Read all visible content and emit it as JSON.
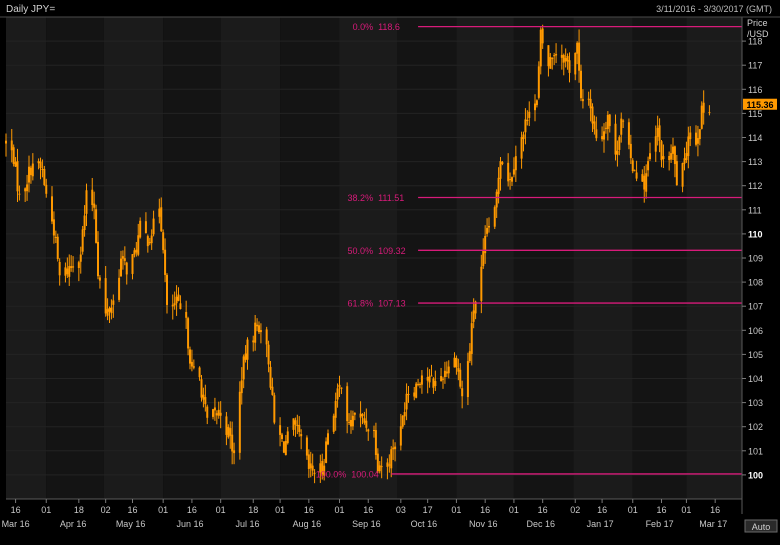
{
  "header": {
    "title": "Daily JPY=",
    "date_range": "3/11/2016 - 3/30/2017 (GMT)"
  },
  "axis_title": [
    "Price",
    "/USD"
  ],
  "auto_label": "Auto",
  "colors": {
    "background": "#000000",
    "plot_band_a": "#1b1b1b",
    "plot_band_b": "#141414",
    "candles": "#ff9900",
    "fib": "#d81b7a",
    "text": "#c8c8c8",
    "last_price_bg": "#ff9900"
  },
  "chart_data": {
    "type": "candlestick",
    "x_range": [
      "2016-03-11",
      "2017-03-30"
    ],
    "ylim": [
      99,
      119
    ],
    "y_ticks": [
      100,
      101,
      102,
      103,
      104,
      105,
      106,
      107,
      108,
      109,
      110,
      111,
      112,
      113,
      114,
      115,
      116,
      117,
      118
    ],
    "y_ticks_bold": [
      100,
      110
    ],
    "last_price": "115.36",
    "x_day_ticks": [
      {
        "date": "2016-03-16",
        "label": "16"
      },
      {
        "date": "2016-04-01",
        "label": "01"
      },
      {
        "date": "2016-04-18",
        "label": "18"
      },
      {
        "date": "2016-05-02",
        "label": "02"
      },
      {
        "date": "2016-05-16",
        "label": "16"
      },
      {
        "date": "2016-06-01",
        "label": "01"
      },
      {
        "date": "2016-06-16",
        "label": "16"
      },
      {
        "date": "2016-07-01",
        "label": "01"
      },
      {
        "date": "2016-07-18",
        "label": "18"
      },
      {
        "date": "2016-08-01",
        "label": "01"
      },
      {
        "date": "2016-08-16",
        "label": "16"
      },
      {
        "date": "2016-09-01",
        "label": "01"
      },
      {
        "date": "2016-09-16",
        "label": "16"
      },
      {
        "date": "2016-10-03",
        "label": "03"
      },
      {
        "date": "2016-10-17",
        "label": "17"
      },
      {
        "date": "2016-11-01",
        "label": "01"
      },
      {
        "date": "2016-11-16",
        "label": "16"
      },
      {
        "date": "2016-12-01",
        "label": "01"
      },
      {
        "date": "2016-12-16",
        "label": "16"
      },
      {
        "date": "2017-01-02",
        "label": "02"
      },
      {
        "date": "2017-01-16",
        "label": "16"
      },
      {
        "date": "2017-02-01",
        "label": "01"
      },
      {
        "date": "2017-02-16",
        "label": "16"
      },
      {
        "date": "2017-03-01",
        "label": "01"
      },
      {
        "date": "2017-03-16",
        "label": "16"
      }
    ],
    "x_month_labels": [
      {
        "date": "2016-03-16",
        "label": "Mar 16"
      },
      {
        "date": "2016-04-15",
        "label": "Apr 16"
      },
      {
        "date": "2016-05-15",
        "label": "May 16"
      },
      {
        "date": "2016-06-15",
        "label": "Jun 16"
      },
      {
        "date": "2016-07-15",
        "label": "Jul 16"
      },
      {
        "date": "2016-08-15",
        "label": "Aug 16"
      },
      {
        "date": "2016-09-15",
        "label": "Sep 16"
      },
      {
        "date": "2016-10-15",
        "label": "Oct 16"
      },
      {
        "date": "2016-11-15",
        "label": "Nov 16"
      },
      {
        "date": "2016-12-15",
        "label": "Dec 16"
      },
      {
        "date": "2017-01-15",
        "label": "Jan 17"
      },
      {
        "date": "2017-02-15",
        "label": "Feb 17"
      },
      {
        "date": "2017-03-15",
        "label": "Mar 17"
      }
    ],
    "fib_levels": [
      {
        "pct": "0.0%",
        "value": 118.6,
        "label": "118.6",
        "start_date": "2016-10-12"
      },
      {
        "pct": "38.2%",
        "value": 111.51,
        "label": "111.51",
        "start_date": "2016-10-12"
      },
      {
        "pct": "50.0%",
        "value": 109.32,
        "label": "109.32",
        "start_date": "2016-10-12"
      },
      {
        "pct": "61.8%",
        "value": 107.13,
        "label": "107.13",
        "start_date": "2016-10-12"
      },
      {
        "pct": "100.0%",
        "value": 100.04,
        "label": "100.04",
        "start_date": "2016-09-28"
      }
    ],
    "series_close": [
      [
        "2016-03-11",
        113.8
      ],
      [
        "2016-03-15",
        113.2
      ],
      [
        "2016-03-18",
        111.5
      ],
      [
        "2016-03-22",
        112.3
      ],
      [
        "2016-03-25",
        113.0
      ],
      [
        "2016-03-30",
        112.6
      ],
      [
        "2016-04-01",
        111.6
      ],
      [
        "2016-04-05",
        110.2
      ],
      [
        "2016-04-08",
        108.2
      ],
      [
        "2016-04-12",
        108.5
      ],
      [
        "2016-04-15",
        108.8
      ],
      [
        "2016-04-19",
        109.3
      ],
      [
        "2016-04-22",
        111.5
      ],
      [
        "2016-04-26",
        111.2
      ],
      [
        "2016-04-28",
        108.5
      ],
      [
        "2016-05-02",
        106.6
      ],
      [
        "2016-05-06",
        107.2
      ],
      [
        "2016-05-10",
        108.9
      ],
      [
        "2016-05-13",
        108.6
      ],
      [
        "2016-05-17",
        109.1
      ],
      [
        "2016-05-20",
        110.2
      ],
      [
        "2016-05-24",
        109.8
      ],
      [
        "2016-05-27",
        110.3
      ],
      [
        "2016-05-30",
        111.2
      ],
      [
        "2016-06-01",
        109.6
      ],
      [
        "2016-06-03",
        106.8
      ],
      [
        "2016-06-08",
        107.1
      ],
      [
        "2016-06-13",
        106.2
      ],
      [
        "2016-06-16",
        104.3
      ],
      [
        "2016-06-20",
        104.0
      ],
      [
        "2016-06-24",
        102.2
      ],
      [
        "2016-06-28",
        102.5
      ],
      [
        "2016-07-01",
        102.6
      ],
      [
        "2016-07-06",
        101.5
      ],
      [
        "2016-07-08",
        100.8
      ],
      [
        "2016-07-12",
        104.2
      ],
      [
        "2016-07-15",
        105.3
      ],
      [
        "2016-07-19",
        106.1
      ],
      [
        "2016-07-22",
        106.2
      ],
      [
        "2016-07-26",
        104.8
      ],
      [
        "2016-07-29",
        102.1
      ],
      [
        "2016-08-03",
        101.2
      ],
      [
        "2016-08-08",
        102.0
      ],
      [
        "2016-08-12",
        101.4
      ],
      [
        "2016-08-16",
        100.2
      ],
      [
        "2016-08-19",
        100.2
      ],
      [
        "2016-08-23",
        100.2
      ],
      [
        "2016-08-26",
        101.8
      ],
      [
        "2016-08-31",
        103.3
      ],
      [
        "2016-09-02",
        103.9
      ],
      [
        "2016-09-06",
        101.9
      ],
      [
        "2016-09-09",
        102.6
      ],
      [
        "2016-09-14",
        102.2
      ],
      [
        "2016-09-19",
        101.8
      ],
      [
        "2016-09-21",
        100.5
      ],
      [
        "2016-09-26",
        100.4
      ],
      [
        "2016-09-29",
        101.2
      ],
      [
        "2016-10-03",
        101.8
      ],
      [
        "2016-10-06",
        103.5
      ],
      [
        "2016-10-10",
        103.6
      ],
      [
        "2016-10-14",
        104.2
      ],
      [
        "2016-10-18",
        103.9
      ],
      [
        "2016-10-21",
        103.8
      ],
      [
        "2016-10-25",
        104.2
      ],
      [
        "2016-10-28",
        104.6
      ],
      [
        "2016-11-01",
        104.8
      ],
      [
        "2016-11-04",
        103.2
      ],
      [
        "2016-11-08",
        105.2
      ],
      [
        "2016-11-10",
        106.9
      ],
      [
        "2016-11-14",
        108.4
      ],
      [
        "2016-11-17",
        110.2
      ],
      [
        "2016-11-21",
        110.8
      ],
      [
        "2016-11-24",
        113.3
      ],
      [
        "2016-11-29",
        112.2
      ],
      [
        "2016-12-02",
        113.4
      ],
      [
        "2016-12-06",
        114.1
      ],
      [
        "2016-12-09",
        115.4
      ],
      [
        "2016-12-13",
        115.4
      ],
      [
        "2016-12-15",
        118.2
      ],
      [
        "2016-12-19",
        117.0
      ],
      [
        "2016-12-22",
        117.6
      ],
      [
        "2016-12-27",
        117.4
      ],
      [
        "2016-12-30",
        116.9
      ],
      [
        "2017-01-03",
        117.8
      ],
      [
        "2017-01-05",
        115.4
      ],
      [
        "2017-01-09",
        115.8
      ],
      [
        "2017-01-12",
        114.2
      ],
      [
        "2017-01-16",
        114.1
      ],
      [
        "2017-01-19",
        115.0
      ],
      [
        "2017-01-23",
        113.1
      ],
      [
        "2017-01-26",
        114.9
      ],
      [
        "2017-01-31",
        113.0
      ],
      [
        "2017-02-03",
        112.6
      ],
      [
        "2017-02-07",
        112.1
      ],
      [
        "2017-02-10",
        113.2
      ],
      [
        "2017-02-14",
        114.2
      ],
      [
        "2017-02-17",
        112.9
      ],
      [
        "2017-02-22",
        113.4
      ],
      [
        "2017-02-24",
        112.2
      ],
      [
        "2017-02-28",
        112.8
      ],
      [
        "2017-03-02",
        114.3
      ],
      [
        "2017-03-06",
        113.9
      ],
      [
        "2017-03-09",
        115.0
      ],
      [
        "2017-03-13",
        115.36
      ]
    ]
  }
}
